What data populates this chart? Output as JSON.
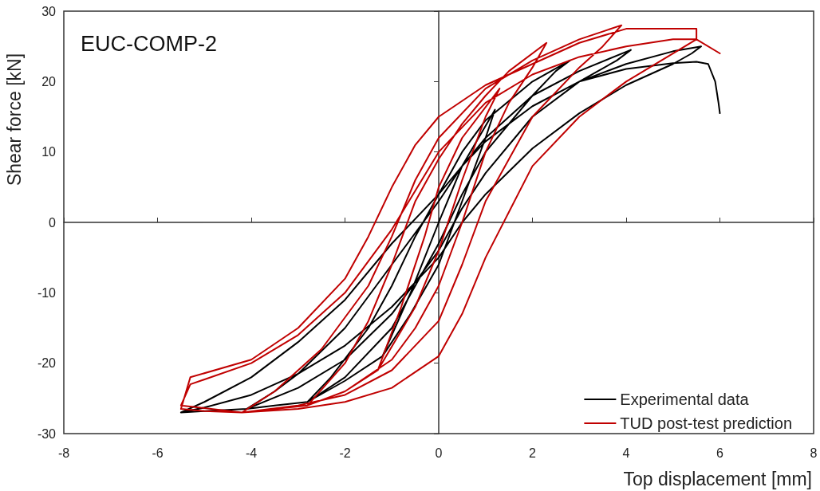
{
  "chart_data": {
    "type": "line",
    "title": "EUC-COMP-2",
    "xlabel": "Top displacement [mm]",
    "ylabel": "Shear force [kN]",
    "xlim": [
      -8,
      8
    ],
    "xticks": [
      -8,
      -6,
      -4,
      -2,
      0,
      2,
      4,
      6,
      8
    ],
    "ylim": [
      -30,
      30
    ],
    "yticks": [
      -30,
      -20,
      -10,
      0,
      10,
      20,
      30
    ],
    "legend": "bottom right",
    "marker": "none",
    "line_style": "solid",
    "series": [
      {
        "name": "Experimental data",
        "color": "#000000",
        "x": [
          -1.2,
          -0.6,
          0,
          0.5,
          1.2,
          1,
          0.5,
          0,
          -0.6,
          -1.2,
          -2,
          -2.8,
          -2.3,
          -1.5,
          -1,
          -0.5,
          0,
          0.5,
          1,
          2,
          2.8,
          2.5,
          2,
          1,
          0.5,
          0,
          -0.5,
          -1,
          -2,
          -2.8,
          -3.5,
          -4.1,
          -3.5,
          -3,
          -2,
          -1,
          0,
          0.5,
          1,
          2,
          3,
          4.1,
          3.8,
          3,
          2,
          1,
          0.5,
          0,
          -1,
          -2,
          -3,
          -4.1,
          -5,
          -5.5,
          -5,
          -4,
          -3,
          -2,
          -1,
          0,
          0.5,
          1,
          2,
          3,
          4,
          5,
          5.6,
          5.4,
          5,
          4,
          3,
          2,
          1,
          0.5,
          0,
          -1,
          -2,
          -3,
          -4,
          -5,
          -5.5,
          -5,
          -4,
          -3,
          -2,
          -1,
          0,
          0.5,
          1,
          2,
          3,
          4,
          5,
          5.5,
          5.75,
          5.9,
          5.97,
          6.0
        ],
        "values": [
          -19,
          -10,
          0,
          8,
          16,
          12,
          3,
          -6,
          -13,
          -19,
          -22.5,
          -25.5,
          -22,
          -15,
          -9,
          -2,
          4,
          10,
          14.5,
          20,
          23,
          21.5,
          18,
          10,
          4,
          -3,
          -9,
          -15,
          -22,
          -25.5,
          -26,
          -26.5,
          -24,
          -21.5,
          -15,
          -6,
          3,
          8,
          12,
          18,
          21.5,
          24.5,
          23,
          20,
          15,
          7,
          2,
          -4,
          -13,
          -19.5,
          -23.5,
          -26.5,
          -26.8,
          -27,
          -25.5,
          -22,
          -17,
          -11,
          -3,
          4,
          8,
          11.5,
          16.5,
          20,
          22.5,
          24.3,
          25,
          24,
          22.5,
          19.5,
          15.5,
          10.5,
          4,
          0,
          -5,
          -12,
          -17.5,
          -21.5,
          -24.5,
          -26.3,
          -27,
          -25.5,
          -22,
          -17,
          -11,
          -3,
          4,
          8,
          11.5,
          16.5,
          20,
          21.8,
          22.6,
          22.8,
          22.5,
          20,
          17,
          15.5
        ]
      },
      {
        "name": "TUD post-test prediction",
        "color": "#c00000",
        "x": [
          -1.3,
          -0.8,
          -0.3,
          0,
          0.5,
          1.3,
          1,
          0.5,
          0,
          -0.5,
          -1.3,
          -2,
          -2.8,
          -2,
          -1.5,
          -1,
          -0.5,
          0,
          0.5,
          1,
          1.5,
          2.3,
          2,
          1.5,
          1,
          0.5,
          0,
          -0.5,
          -1,
          -2,
          -2.8,
          -3.5,
          -4.2,
          -3.5,
          -2.5,
          -1.5,
          -1,
          -0.5,
          0,
          1,
          2,
          3,
          3.9,
          3.5,
          3,
          2,
          1,
          0.5,
          0,
          -1,
          -2,
          -3,
          -4.2,
          -5,
          -5.5,
          -5.3,
          -4,
          -3,
          -2,
          -1.5,
          -1,
          -0.5,
          0,
          1,
          2,
          3,
          4,
          5.5,
          5.5,
          4,
          3,
          2,
          1,
          0.5,
          0,
          -1,
          -2,
          -3,
          -4.2,
          -5.5,
          -5.3,
          -4,
          -3,
          -2,
          -1,
          0,
          1,
          2,
          3,
          4,
          5,
          5.5,
          6.0
        ],
        "values": [
          -21,
          -12,
          -2,
          5,
          12,
          19,
          15,
          6,
          -4,
          -12,
          -21,
          -24,
          -26,
          -20,
          -14,
          -6,
          3,
          9,
          14,
          18,
          21.5,
          25.5,
          22,
          17,
          10,
          0,
          -9,
          -15,
          -19.5,
          -24,
          -26,
          -26.5,
          -27,
          -24,
          -18,
          -9,
          -2,
          6,
          12,
          19,
          23,
          26,
          28,
          25,
          22,
          15,
          3,
          -6,
          -14,
          -21,
          -24.5,
          -26,
          -27,
          -26.8,
          -26.5,
          -22,
          -19.5,
          -15,
          -8,
          -2,
          5,
          11,
          15,
          19.5,
          22.5,
          25.5,
          27.5,
          27.5,
          26,
          20,
          15,
          8,
          -5,
          -13,
          -19,
          -23.5,
          -25.5,
          -26.5,
          -27,
          -26,
          -23,
          -20,
          -16,
          -10,
          -1,
          10,
          17,
          21,
          23.5,
          25,
          26,
          26,
          24
        ]
      }
    ]
  }
}
